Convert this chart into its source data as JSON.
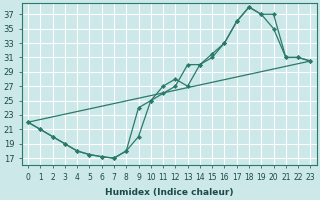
{
  "xlabel": "Humidex (Indice chaleur)",
  "bg_color": "#cce8e8",
  "grid_color": "#ffffff",
  "line_color": "#2a7a6a",
  "xlim": [
    -0.5,
    23.5
  ],
  "ylim": [
    16,
    38.5
  ],
  "xticks": [
    0,
    1,
    2,
    3,
    4,
    5,
    6,
    7,
    8,
    9,
    10,
    11,
    12,
    13,
    14,
    15,
    16,
    17,
    18,
    19,
    20,
    21,
    22,
    23
  ],
  "yticks": [
    17,
    19,
    21,
    23,
    25,
    27,
    29,
    31,
    33,
    35,
    37
  ],
  "line1_x": [
    0,
    1,
    2,
    3,
    4,
    5,
    6,
    7,
    8,
    9,
    10,
    11,
    12,
    13,
    14,
    15,
    16,
    17,
    18,
    19,
    20,
    21,
    22,
    23
  ],
  "line1_y": [
    22,
    21,
    20,
    19,
    18,
    17.5,
    17.2,
    17,
    18,
    20,
    25,
    27,
    28,
    27,
    30,
    31,
    33,
    36,
    38,
    37,
    35,
    31,
    31,
    30.5
  ],
  "line2_x": [
    0,
    1,
    2,
    3,
    4,
    5,
    6,
    7,
    8,
    9,
    10,
    11,
    12,
    13,
    14,
    15,
    16,
    17,
    18,
    19,
    20,
    21,
    22,
    23
  ],
  "line2_y": [
    22,
    21,
    20,
    19,
    18,
    17.5,
    17.2,
    17,
    18,
    24,
    25,
    26,
    27,
    30,
    30,
    31.5,
    33,
    36,
    38,
    37,
    37,
    31,
    31,
    30.5
  ],
  "line3_x": [
    0,
    23
  ],
  "line3_y": [
    22,
    30.5
  ]
}
